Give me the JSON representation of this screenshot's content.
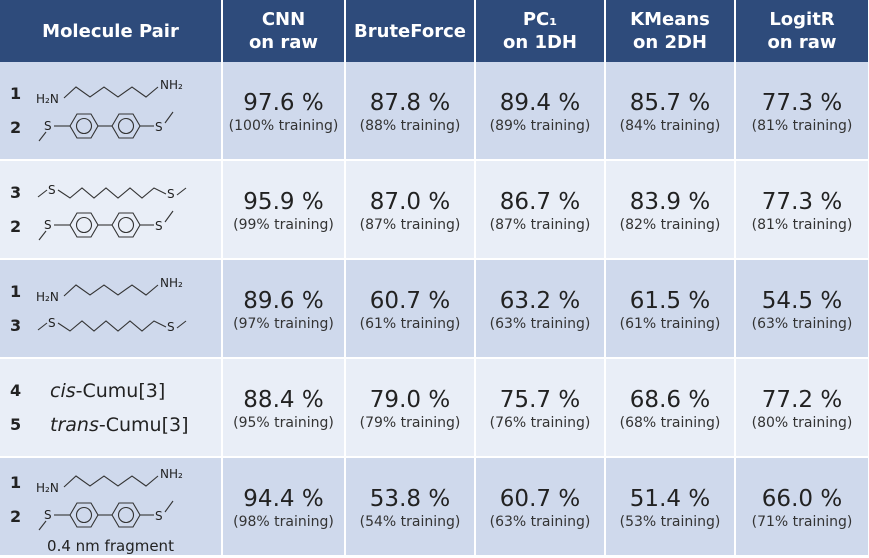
{
  "table": {
    "header": [
      [
        "Molecule Pair"
      ],
      [
        "CNN",
        "on raw"
      ],
      [
        "BruteForce"
      ],
      [
        "PC₁",
        "on 1DH"
      ],
      [
        "KMeans",
        "on 2DH"
      ],
      [
        "LogitR",
        "on raw"
      ]
    ],
    "rows": [
      {
        "molecules": [
          {
            "id": "1",
            "labels": [
              "H₂N",
              "NH₂"
            ]
          },
          {
            "id": "2",
            "labels": [
              "S",
              "S"
            ]
          }
        ],
        "cells": [
          {
            "value": "97.6 %",
            "training": "(100% training)"
          },
          {
            "value": "87.8 %",
            "training": "(88% training)"
          },
          {
            "value": "89.4 %",
            "training": "(89% training)"
          },
          {
            "value": "85.7 %",
            "training": "(84% training)"
          },
          {
            "value": "77.3 %",
            "training": "(81% training)"
          }
        ]
      },
      {
        "molecules": [
          {
            "id": "3",
            "labels": [
              "S",
              "S"
            ]
          },
          {
            "id": "2",
            "labels": [
              "S",
              "S"
            ]
          }
        ],
        "cells": [
          {
            "value": "95.9 %",
            "training": "(99% training)"
          },
          {
            "value": "87.0 %",
            "training": "(87% training)"
          },
          {
            "value": "86.7 %",
            "training": "(87% training)"
          },
          {
            "value": "83.9 %",
            "training": "(82% training)"
          },
          {
            "value": "77.3 %",
            "training": "(81% training)"
          }
        ]
      },
      {
        "molecules": [
          {
            "id": "1",
            "labels": [
              "H₂N",
              "NH₂"
            ]
          },
          {
            "id": "3",
            "labels": [
              "S",
              "S"
            ]
          }
        ],
        "cells": [
          {
            "value": "89.6 %",
            "training": "(97% training)"
          },
          {
            "value": "60.7 %",
            "training": "(61% training)"
          },
          {
            "value": "63.2 %",
            "training": "(63% training)"
          },
          {
            "value": "61.5 %",
            "training": "(61% training)"
          },
          {
            "value": "54.5 %",
            "training": "(63% training)"
          }
        ]
      },
      {
        "molecules": [
          {
            "id": "4",
            "italic": "cis",
            "text": "-Cumu[3]"
          },
          {
            "id": "5",
            "italic": "trans",
            "text": "-Cumu[3]"
          }
        ],
        "cells": [
          {
            "value": "88.4 %",
            "training": "(95% training)"
          },
          {
            "value": "79.0 %",
            "training": "(79% training)"
          },
          {
            "value": "75.7 %",
            "training": "(76% training)"
          },
          {
            "value": "68.6 %",
            "training": "(68% training)"
          },
          {
            "value": "77.2 %",
            "training": "(80% training)"
          }
        ]
      },
      {
        "molecules": [
          {
            "id": "1",
            "labels": [
              "H₂N",
              "NH₂"
            ]
          },
          {
            "id": "2",
            "labels": [
              "S",
              "S"
            ]
          }
        ],
        "note": "0.4 nm fragment",
        "cells": [
          {
            "value": "94.4 %",
            "training": "(98% training)"
          },
          {
            "value": "53.8 %",
            "training": "(54% training)"
          },
          {
            "value": "60.7 %",
            "training": "(63% training)"
          },
          {
            "value": "51.4 %",
            "training": "(53% training)"
          },
          {
            "value": "66.0 %",
            "training": "(71% training)"
          }
        ]
      }
    ]
  }
}
